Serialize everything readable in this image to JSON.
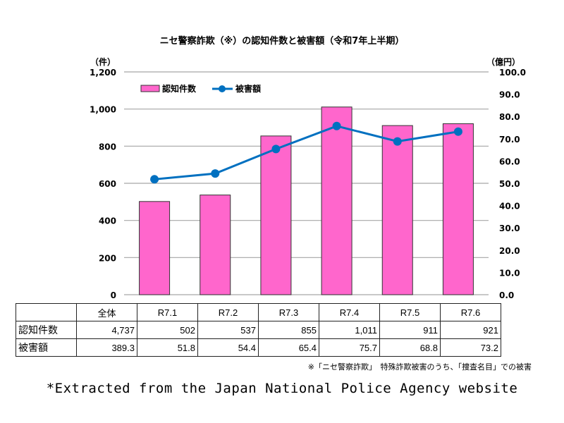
{
  "chart_data": {
    "type": "bar+line",
    "title": "ニセ警察詐欺（※）の認知件数と被害額（令和7年上半期）",
    "categories": [
      "R7.1",
      "R7.2",
      "R7.3",
      "R7.4",
      "R7.5",
      "R7.6"
    ],
    "left_axis": {
      "unit": "（件）",
      "range": [
        0,
        1200
      ],
      "ticks": [
        "0",
        "200",
        "400",
        "600",
        "800",
        "1,000",
        "1,200"
      ],
      "tick_values": [
        0,
        200,
        400,
        600,
        800,
        1000,
        1200
      ]
    },
    "right_axis": {
      "unit": "（億円）",
      "range": [
        0,
        100
      ],
      "ticks": [
        "0.0",
        "10.0",
        "20.0",
        "30.0",
        "40.0",
        "50.0",
        "60.0",
        "70.0",
        "80.0",
        "90.0",
        "100.0"
      ],
      "tick_values": [
        0,
        10,
        20,
        30,
        40,
        50,
        60,
        70,
        80,
        90,
        100
      ]
    },
    "series": [
      {
        "name": "認知件数",
        "type": "bar",
        "axis": "left",
        "color": "#FF66CC",
        "values": [
          502,
          537,
          855,
          1011,
          911,
          921
        ]
      },
      {
        "name": "被害額",
        "type": "line",
        "axis": "right",
        "color": "#0070C0",
        "values": [
          51.8,
          54.4,
          65.4,
          75.7,
          68.8,
          73.2
        ]
      }
    ],
    "grid": true,
    "legend": "top-left"
  },
  "table": {
    "header": [
      "",
      "全体",
      "R7.1",
      "R7.2",
      "R7.3",
      "R7.4",
      "R7.5",
      "R7.6"
    ],
    "rows": [
      [
        "認知件数",
        "4,737",
        "502",
        "537",
        "855",
        "1,011",
        "911",
        "921"
      ],
      [
        "被害額",
        "389.3",
        "51.8",
        "54.4",
        "65.4",
        "75.7",
        "68.8",
        "73.2"
      ]
    ]
  },
  "note": "※「ニセ警察詐欺」　特殊詐欺被害のうち、「捜査名目」での被害",
  "source": "*Extracted from the Japan National Police Agency website"
}
